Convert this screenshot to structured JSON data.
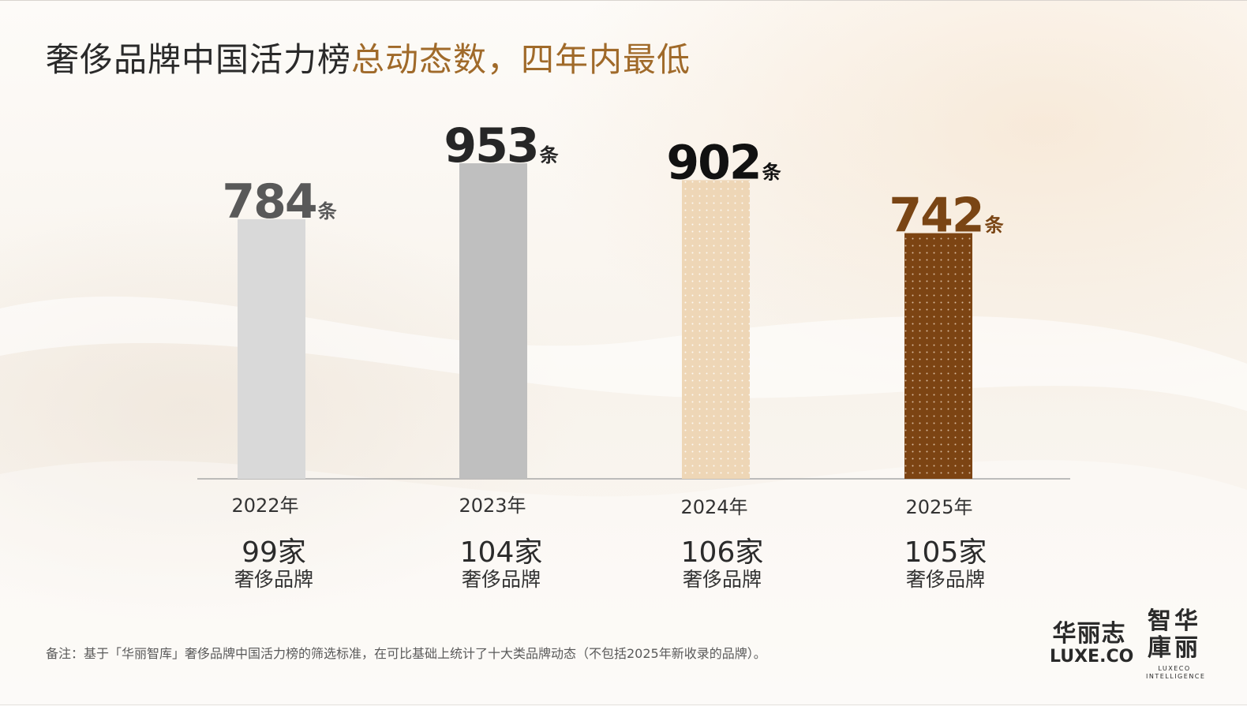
{
  "title": {
    "main": "奢侈品牌中国活力榜",
    "accent": "总动态数，四年内最低"
  },
  "unit": "条",
  "colors": {
    "bar_2022": "#d9d9d9",
    "bar_2023": "#bfbfbf",
    "bar_2024": "#eed6b6",
    "bar_2025": "#7c4413",
    "value_2022": "#595959",
    "value_2023": "#262626",
    "value_2024": "#111111",
    "value_2025": "#7a4514",
    "accent": "#a06a2a"
  },
  "chart_data": {
    "type": "bar",
    "title": "奢侈品牌中国活力榜总动态数，四年内最低",
    "categories": [
      "2022年",
      "2023年",
      "2024年",
      "2025年"
    ],
    "values": [
      784,
      953,
      902,
      742
    ],
    "unit": "条",
    "ylim": [
      0,
      953
    ],
    "grid": false,
    "legend": "none"
  },
  "brands": [
    {
      "count": "99家",
      "label": "奢侈品牌"
    },
    {
      "count": "104家",
      "label": "奢侈品牌"
    },
    {
      "count": "106家",
      "label": "奢侈品牌"
    },
    {
      "count": "105家",
      "label": "奢侈品牌"
    }
  ],
  "note": "备注：基于「华丽智库」奢侈品牌中国活力榜的筛选标准，在可比基础上统计了十大类品牌动态（不包括2025年新收录的品牌）。",
  "logos": {
    "luxe_cn": "华丽志",
    "luxe_en": "LUXE.CO",
    "intel_cn": [
      "智",
      "华",
      "庫",
      "丽"
    ],
    "intel_en": "LUXECO INTELLIGENCE"
  }
}
